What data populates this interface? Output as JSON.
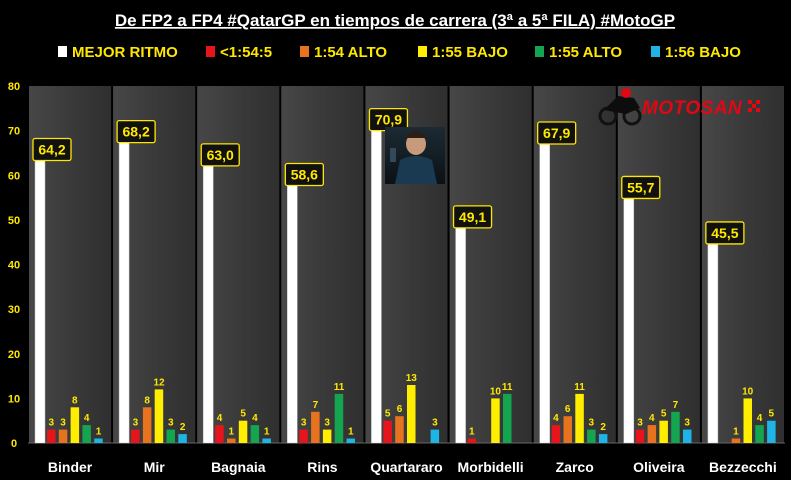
{
  "chart_data": {
    "type": "bar",
    "title": "De FP2 a FP4 #QatarGP en tiempos de carrera (3ª a 5ª FILA) #MotoGP",
    "xlabel": "",
    "ylabel": "",
    "ylim": [
      0,
      80
    ],
    "yticks": [
      0,
      10,
      20,
      30,
      40,
      50,
      60,
      70,
      80
    ],
    "grid": false,
    "legend_position": "top",
    "categories": [
      "Binder",
      "Mir",
      "Bagnaia",
      "Rins",
      "Quartararo",
      "Morbidelli",
      "Zarco",
      "Oliveira",
      "Bezzecchi"
    ],
    "series": [
      {
        "name": "MEJOR RITMO",
        "color": "#ffffff",
        "values": [
          64.2,
          68.2,
          63.0,
          58.6,
          70.9,
          49.1,
          67.9,
          55.7,
          45.5
        ],
        "labels": [
          "64,2",
          "68,2",
          "63,0",
          "58,6",
          "70,9",
          "49,1",
          "67,9",
          "55,7",
          "45,5"
        ]
      },
      {
        "name": "<1:54:5",
        "color": "#e8141c",
        "values": [
          3,
          3,
          4,
          3,
          5,
          1,
          4,
          3,
          0
        ],
        "labels": [
          "3",
          "3",
          "4",
          "3",
          "5",
          "1",
          "4",
          "3",
          ""
        ]
      },
      {
        "name": "1:54 ALTO",
        "color": "#e8731e",
        "values": [
          3,
          8,
          1,
          7,
          6,
          0,
          6,
          4,
          1
        ],
        "labels": [
          "3",
          "8",
          "1",
          "7",
          "6",
          "",
          "6",
          "4",
          "1"
        ]
      },
      {
        "name": "1:55 BAJO",
        "color": "#ffee00",
        "values": [
          8,
          12,
          5,
          3,
          13,
          10,
          11,
          5,
          10
        ],
        "labels": [
          "8",
          "12",
          "5",
          "3",
          "13",
          "10",
          "11",
          "5",
          "10"
        ]
      },
      {
        "name": "1:55 ALTO",
        "color": "#14a550",
        "values": [
          4,
          3,
          4,
          11,
          0,
          11,
          3,
          7,
          4
        ],
        "labels": [
          "4",
          "3",
          "4",
          "11",
          "",
          "11",
          "3",
          "7",
          "4"
        ]
      },
      {
        "name": "1:56 BAJO",
        "color": "#1eb4e6",
        "values": [
          1,
          2,
          1,
          1,
          3,
          0,
          2,
          3,
          5
        ],
        "labels": [
          "1",
          "2",
          "1",
          "1",
          "3",
          "",
          "2",
          "3",
          "5"
        ]
      }
    ]
  },
  "logo": {
    "text": "MOTOSAN"
  }
}
